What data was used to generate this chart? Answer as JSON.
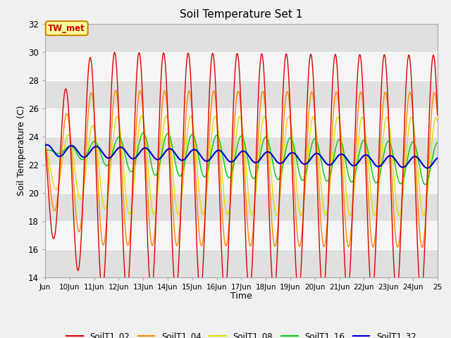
{
  "title": "Soil Temperature Set 1",
  "xlabel": "Time",
  "ylabel": "Soil Temperature (C)",
  "ylim": [
    14,
    32
  ],
  "yticks": [
    14,
    16,
    18,
    20,
    22,
    24,
    26,
    28,
    30,
    32
  ],
  "annotation": "TW_met",
  "fig_bg": "#f0f0f0",
  "plot_bg": "#ffffff",
  "band_light": "#f5f5f5",
  "band_dark": "#e0e0e0",
  "series_colors": {
    "SoilT1_02": "#dd0000",
    "SoilT1_04": "#ff8800",
    "SoilT1_08": "#dddd00",
    "SoilT1_16": "#00cc00",
    "SoilT1_32": "#0000cc"
  },
  "legend_labels": [
    "SoilT1_02",
    "SoilT1_04",
    "SoilT1_08",
    "SoilT1_16",
    "SoilT1_32"
  ]
}
